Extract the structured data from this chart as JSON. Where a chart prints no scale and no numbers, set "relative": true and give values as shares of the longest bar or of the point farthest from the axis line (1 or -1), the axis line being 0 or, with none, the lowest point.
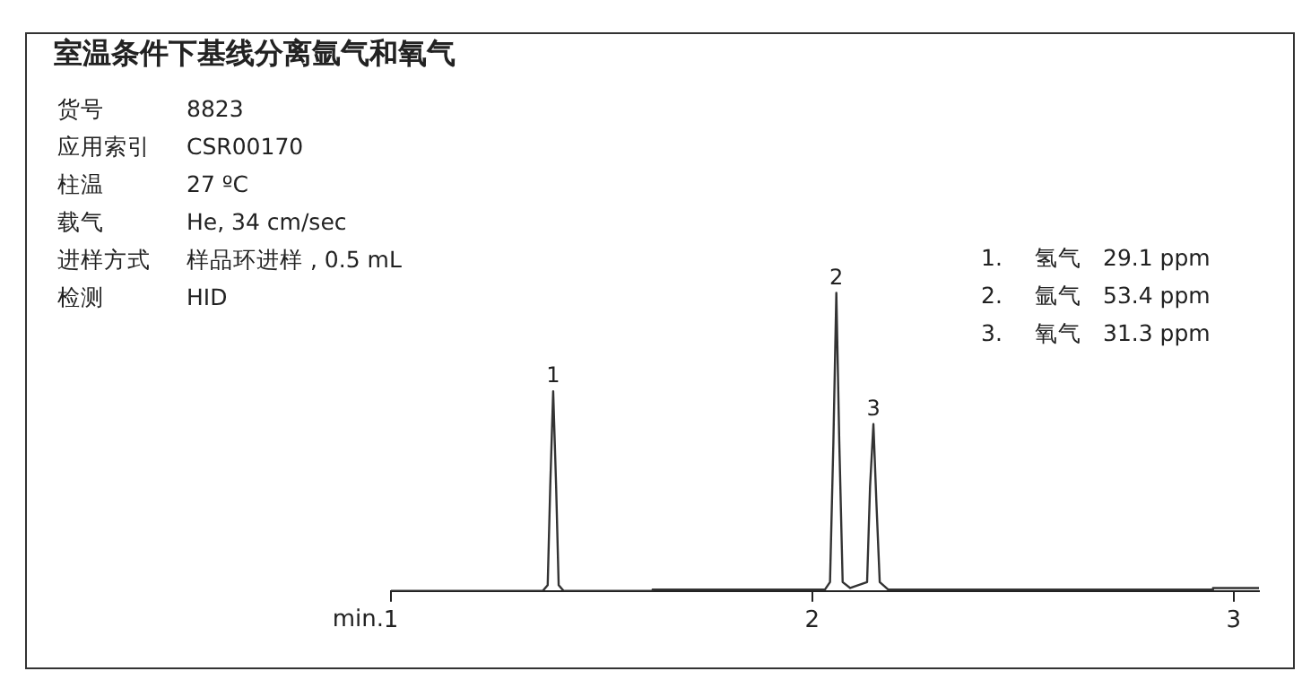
{
  "chart_data": {
    "type": "line",
    "title": "室温条件下基线分离氩气和氧气",
    "xlabel": "min.",
    "relative": true,
    "xlim": [
      1,
      3.06
    ],
    "xticks": [
      1,
      2,
      3
    ],
    "grid": false,
    "legend": false,
    "marker": "none",
    "line_style": "solid",
    "series": [
      {
        "color": "#333333",
        "x": [
          1,
          1.36,
          1.372,
          1.378,
          1.385,
          1.392,
          1.398,
          1.41,
          1.62,
          1.621,
          2.03,
          2.042,
          2.05,
          2.057,
          2.064,
          2.072,
          2.09,
          2.13,
          2.137,
          2.145,
          2.152,
          2.16,
          2.18,
          2.95,
          2.951,
          3.06
        ],
        "values": [
          0,
          0,
          0.02,
          0.35,
          0.67,
          0.35,
          0.02,
          0,
          0,
          0.005,
          0.005,
          0.03,
          0.5,
          1,
          0.5,
          0.03,
          0.01,
          0.03,
          0.35,
          0.56,
          0.3,
          0.03,
          0.005,
          0.005,
          0.01,
          0.01
        ]
      }
    ],
    "annotations": [
      "货号 8823",
      "应用索引 CSR00170",
      "柱温 27 ºC",
      "载气 He, 34 cm/sec",
      "进样方式 样品环进样 , 0.5 mL",
      "检测 HID",
      "1. 氢气 29.1 ppm",
      "2. 氩气 53.4 ppm",
      "3. 氧气 31.3 ppm",
      {
        "text": "1",
        "x": 1.385,
        "y": 0.67
      },
      {
        "text": "2",
        "x": 2.057,
        "y": 1
      },
      {
        "text": "3",
        "x": 2.145,
        "y": 0.56
      }
    ]
  }
}
